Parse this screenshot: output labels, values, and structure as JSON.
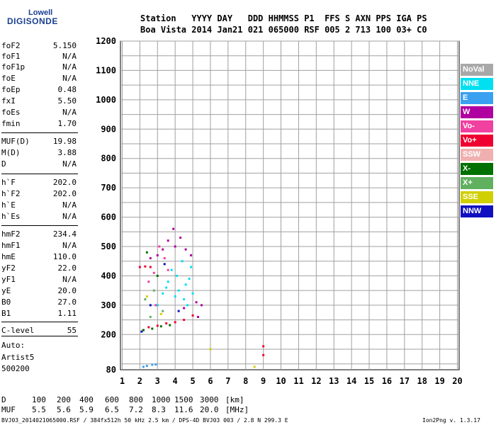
{
  "logo": {
    "line1": "Lowell",
    "line2": "DIGISONDE"
  },
  "header": {
    "line1": "Station   YYYY DAY   DDD HHMMSS P1  FFS S AXN PPS IGA PS",
    "line2": "Boa Vista 2014 Jan21 021 065000 RSF 005 2 713 100 03+ C0"
  },
  "params": [
    {
      "name": "foF2",
      "value": "5.150"
    },
    {
      "name": "foF1",
      "value": "N/A"
    },
    {
      "name": "foF1p",
      "value": "N/A"
    },
    {
      "name": "foE",
      "value": "N/A"
    },
    {
      "name": "foEp",
      "value": "0.48"
    },
    {
      "name": "fxI",
      "value": "5.50"
    },
    {
      "name": "foEs",
      "value": "N/A"
    },
    {
      "name": "fmin",
      "value": "1.70"
    },
    {
      "name": "MUF(D)",
      "value": "19.98"
    },
    {
      "name": "M(D)",
      "value": "3.88"
    },
    {
      "name": "D",
      "value": "N/A"
    },
    {
      "name": "h`F",
      "value": "202.0"
    },
    {
      "name": "h`F2",
      "value": "202.0"
    },
    {
      "name": "h`E",
      "value": "N/A"
    },
    {
      "name": "h`Es",
      "value": "N/A"
    },
    {
      "name": "hmF2",
      "value": "234.4"
    },
    {
      "name": "hmF1",
      "value": "N/A"
    },
    {
      "name": "hmE",
      "value": "110.0"
    },
    {
      "name": "yF2",
      "value": "22.0"
    },
    {
      "name": "yF1",
      "value": "N/A"
    },
    {
      "name": "yE",
      "value": "20.0"
    },
    {
      "name": "B0",
      "value": "27.0"
    },
    {
      "name": "B1",
      "value": "1.11"
    },
    {
      "name": "C-level",
      "value": "55"
    }
  ],
  "auto": {
    "line1": "Auto:",
    "line2": "Artist5",
    "line3": "500200"
  },
  "legend": [
    {
      "label": "NoVal",
      "color": "#a8a8a8"
    },
    {
      "label": "NNE",
      "color": "#00e0f0"
    },
    {
      "label": "E",
      "color": "#3aa0f0"
    },
    {
      "label": "W",
      "color": "#b000a0"
    },
    {
      "label": "Vo-",
      "color": "#f040a0"
    },
    {
      "label": "Vo+",
      "color": "#f00030"
    },
    {
      "label": "SSW",
      "color": "#f0b0b0"
    },
    {
      "label": "X-",
      "color": "#007000"
    },
    {
      "label": "X+",
      "color": "#60b060"
    },
    {
      "label": "SSE",
      "color": "#d0d000"
    },
    {
      "label": "NNW",
      "color": "#1010c0"
    }
  ],
  "muf_table": {
    "d_label": "D",
    "d_values": [
      "100",
      "200",
      "400",
      "600",
      "800",
      "1000",
      "1500",
      "3000",
      "[km]"
    ],
    "muf_label": "MUF",
    "muf_values": [
      "5.5",
      "5.6",
      "5.9",
      "6.5",
      "7.2",
      "8.3",
      "11.6",
      "20.0",
      "[MHz]"
    ]
  },
  "footer": {
    "left": "BVJ03_2014021065000.RSF / 384fx512h 50 kHz 2.5 km / DPS-4D BVJ03 003 / 2.8 N 299.3 E",
    "right": "Ion2Png v. 1.3.17"
  },
  "chart_data": {
    "type": "scatter",
    "xlim": [
      0.9,
      20.1
    ],
    "ylim": [
      80,
      1200
    ],
    "x_ticks": [
      1,
      2,
      3,
      4,
      5,
      6,
      7,
      8,
      9,
      10,
      11,
      12,
      13,
      14,
      15,
      16,
      17,
      18,
      19,
      20
    ],
    "y_ticks": [
      80,
      200,
      300,
      400,
      500,
      600,
      700,
      800,
      900,
      1000,
      1100,
      1200
    ],
    "grid": true,
    "legend_position": "right",
    "series": [
      {
        "name": "NNE",
        "points": [
          [
            3.0,
            300
          ],
          [
            3.3,
            340
          ],
          [
            3.6,
            380
          ],
          [
            4.0,
            330
          ],
          [
            4.2,
            350
          ],
          [
            4.5,
            320
          ],
          [
            4.7,
            300
          ],
          [
            4.8,
            390
          ],
          [
            5.0,
            340
          ],
          [
            3.8,
            420
          ],
          [
            4.4,
            450
          ],
          [
            4.9,
            430
          ],
          [
            3.5,
            360
          ],
          [
            4.1,
            400
          ],
          [
            4.6,
            370
          ]
        ]
      },
      {
        "name": "E",
        "points": [
          [
            2.2,
            90
          ],
          [
            2.4,
            93
          ],
          [
            2.7,
            97
          ],
          [
            2.9,
            98
          ]
        ]
      },
      {
        "name": "W",
        "points": [
          [
            3.0,
            470
          ],
          [
            3.3,
            490
          ],
          [
            3.6,
            520
          ],
          [
            4.0,
            500
          ],
          [
            4.3,
            530
          ],
          [
            4.6,
            490
          ],
          [
            4.9,
            470
          ],
          [
            5.2,
            310
          ],
          [
            5.5,
            300
          ],
          [
            5.3,
            260
          ],
          [
            4.5,
            290
          ],
          [
            2.6,
            460
          ],
          [
            3.9,
            560
          ]
        ]
      },
      {
        "name": "Vo-",
        "points": [
          [
            2.5,
            380
          ],
          [
            2.8,
            410
          ],
          [
            3.1,
            500
          ],
          [
            3.4,
            460
          ],
          [
            2.9,
            300
          ],
          [
            3.6,
            420
          ]
        ]
      },
      {
        "name": "Vo+",
        "points": [
          [
            2.0,
            430
          ],
          [
            2.3,
            432
          ],
          [
            2.6,
            430
          ],
          [
            2.2,
            215
          ],
          [
            2.5,
            225
          ],
          [
            3.0,
            230
          ],
          [
            3.5,
            238
          ],
          [
            4.0,
            242
          ],
          [
            4.5,
            250
          ],
          [
            5.0,
            265
          ],
          [
            9.0,
            130
          ],
          [
            9.0,
            160
          ]
        ]
      },
      {
        "name": "X-",
        "points": [
          [
            2.2,
            215
          ],
          [
            2.7,
            220
          ],
          [
            3.2,
            228
          ],
          [
            3.7,
            232
          ],
          [
            2.4,
            480
          ],
          [
            3.0,
            400
          ]
        ]
      },
      {
        "name": "X+",
        "points": [
          [
            2.3,
            320
          ],
          [
            2.8,
            350
          ],
          [
            3.3,
            280
          ],
          [
            2.6,
            260
          ]
        ]
      },
      {
        "name": "SSE",
        "points": [
          [
            6.0,
            150
          ],
          [
            8.5,
            90
          ],
          [
            2.4,
            330
          ],
          [
            3.2,
            270
          ]
        ]
      },
      {
        "name": "NNW",
        "points": [
          [
            2.1,
            210
          ],
          [
            2.6,
            300
          ],
          [
            3.4,
            440
          ],
          [
            4.2,
            280
          ]
        ]
      }
    ]
  }
}
